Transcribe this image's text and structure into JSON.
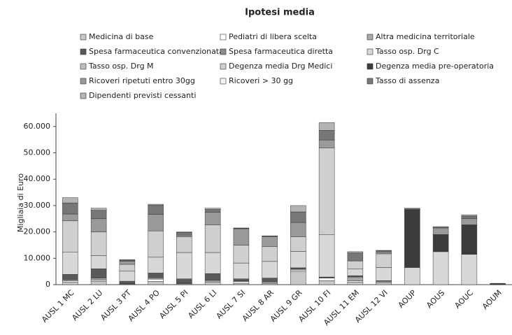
{
  "chart_data": {
    "type": "stacked_bar",
    "title": "Ipotesi media",
    "y_label": "Migliaia di Euro",
    "categories": [
      "AUSL 1 MC",
      "AUSL 2 LU",
      "AUSL 3 PT",
      "AUSL 4 PO",
      "AUSL 5 PI",
      "AUSL 6 LI",
      "AUSL 7 SI",
      "AUSL 8 AR",
      "AUSL 9 GR",
      "AUSL 10 FI",
      "AUSL 11 EM",
      "AUSL 12 VI",
      "AOUP",
      "AOUS",
      "AOUC",
      "AOUM"
    ],
    "series": [
      {
        "name": "Medicina di base",
        "color": "#c8c8c8",
        "values": [
          1000,
          1200,
          200,
          1200,
          300,
          1000,
          500,
          500,
          5000,
          1500,
          1000,
          600,
          0,
          0,
          0,
          0
        ]
      },
      {
        "name": "Pediatri di libera scelta",
        "color": "#ffffff",
        "values": [
          400,
          500,
          100,
          900,
          200,
          300,
          600,
          300,
          500,
          1000,
          400,
          400,
          0,
          0,
          0,
          0
        ]
      },
      {
        "name": "Altra medicina territoriale",
        "color": "#a8a8a8",
        "values": [
          500,
          800,
          200,
          500,
          200,
          400,
          300,
          400,
          400,
          200,
          1500,
          300,
          0,
          0,
          0,
          0
        ]
      },
      {
        "name": "Spesa farmaceutica convenzionata",
        "color": "#5a5a5a",
        "values": [
          2000,
          3500,
          800,
          1800,
          1500,
          2500,
          800,
          1300,
          500,
          200,
          500,
          200,
          0,
          0,
          0,
          0
        ]
      },
      {
        "name": "Spesa farmaceutica diretta",
        "color": "#8c8c8c",
        "values": [
          0,
          0,
          0,
          0,
          0,
          0,
          0,
          0,
          0,
          0,
          0,
          0,
          0,
          0,
          0,
          0
        ]
      },
      {
        "name": "Tasso osp. Drg C",
        "color": "#d8d8d8",
        "values": [
          8500,
          5000,
          3800,
          6000,
          10000,
          8000,
          6000,
          6300,
          6200,
          16000,
          2500,
          5000,
          6500,
          12500,
          11500,
          0
        ]
      },
      {
        "name": "Tasso osp. Drg M",
        "color": "#bdbdbd",
        "values": [
          0,
          0,
          0,
          0,
          0,
          0,
          0,
          0,
          0,
          0,
          0,
          0,
          0,
          0,
          0,
          0
        ]
      },
      {
        "name": "Degenza media Drg Medici",
        "color": "#cfcfcf",
        "values": [
          11800,
          9000,
          2600,
          10000,
          6000,
          10500,
          6800,
          5700,
          5600,
          33000,
          3100,
          5200,
          0,
          0,
          0,
          0
        ]
      },
      {
        "name": "Degenza media pre-operatoria",
        "color": "#3c3c3c",
        "values": [
          0,
          0,
          0,
          0,
          0,
          0,
          0,
          0,
          0,
          0,
          0,
          0,
          22000,
          6500,
          11200,
          500
        ]
      },
      {
        "name": "Ricoveri ripetuti entro 30gg",
        "color": "#9a9a9a",
        "values": [
          2600,
          5000,
          1200,
          6200,
          600,
          4800,
          6200,
          3800,
          5400,
          3000,
          0,
          700,
          0,
          2500,
          2300,
          0
        ]
      },
      {
        "name": "Ricoveri > 30 gg",
        "color": "#f4f4f4",
        "values": [
          0,
          0,
          0,
          0,
          0,
          0,
          0,
          0,
          0,
          0,
          0,
          0,
          0,
          0,
          0,
          0
        ]
      },
      {
        "name": "Tasso di assenza",
        "color": "#777777",
        "values": [
          4200,
          3200,
          400,
          3500,
          1000,
          1000,
          200,
          100,
          4000,
          3600,
          3000,
          500,
          500,
          500,
          1000,
          0
        ]
      },
      {
        "name": "Dipendenti previsti cessanti",
        "color": "#b4b4b4",
        "values": [
          2000,
          800,
          200,
          400,
          200,
          500,
          100,
          100,
          2400,
          3000,
          500,
          100,
          0,
          0,
          500,
          0
        ]
      }
    ],
    "ylim": [
      0,
      65000
    ],
    "yticks": [
      0,
      {
        "value": 10000,
        "label": "10.000"
      },
      {
        "value": 20000,
        "label": "20.000"
      },
      {
        "value": 30000,
        "label": "30.000"
      },
      {
        "value": 40000,
        "label": "40.000"
      },
      {
        "value": 50000,
        "label": "50.000"
      },
      {
        "value": 60000,
        "label": "60.000"
      }
    ],
    "grid": false
  }
}
